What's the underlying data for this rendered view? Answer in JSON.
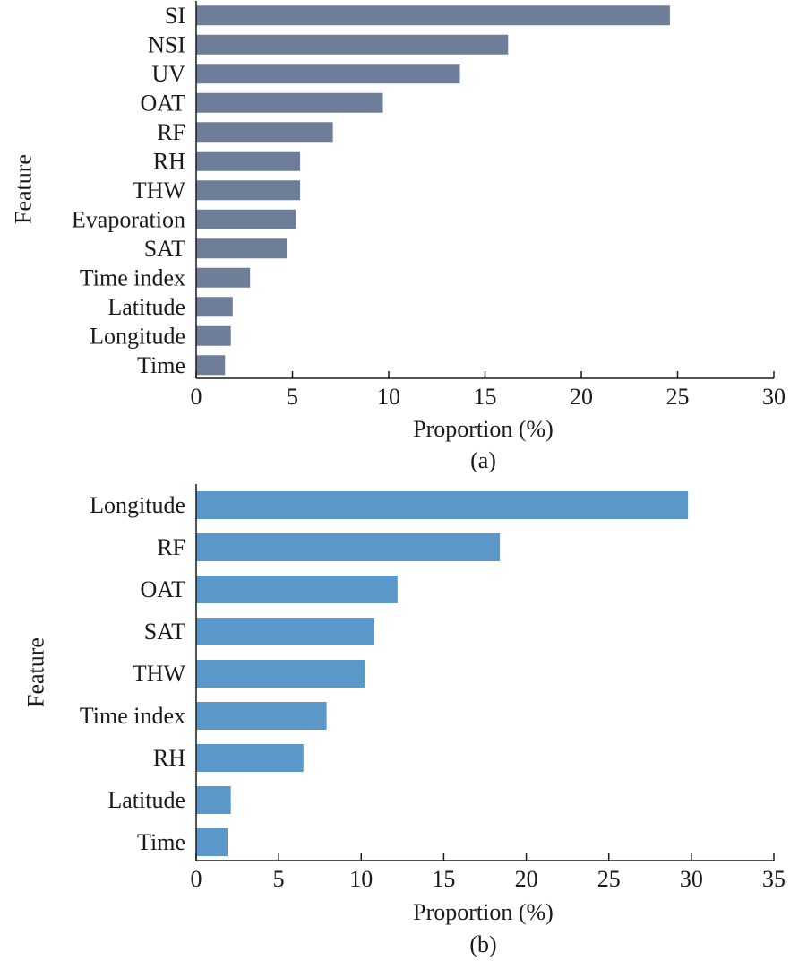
{
  "chart_data": [
    {
      "type": "bar",
      "orientation": "horizontal",
      "panel_label": "(a)",
      "xlabel": "Proportion (%)",
      "ylabel": "Feature",
      "xlim": [
        0,
        30
      ],
      "xticks": [
        0,
        5,
        10,
        15,
        20,
        25,
        30
      ],
      "grid": false,
      "bar_color": "#6f7e98",
      "categories": [
        "SI",
        "NSI",
        "UV",
        "OAT",
        "RF",
        "RH",
        "THW",
        "Evaporation",
        "SAT",
        "Time index",
        "Latitude",
        "Longitude",
        "Time"
      ],
      "values": [
        24.6,
        16.2,
        13.7,
        9.7,
        7.1,
        5.4,
        5.4,
        5.2,
        4.7,
        2.8,
        1.9,
        1.8,
        1.5
      ]
    },
    {
      "type": "bar",
      "orientation": "horizontal",
      "panel_label": "(b)",
      "xlabel": "Proportion (%)",
      "ylabel": "Feature",
      "xlim": [
        0,
        35
      ],
      "xticks": [
        0,
        5,
        10,
        15,
        20,
        25,
        30,
        35
      ],
      "grid": false,
      "bar_color": "#5b97c9",
      "categories": [
        "Longitude",
        "RF",
        "OAT",
        "SAT",
        "THW",
        "Time index",
        "RH",
        "Latitude",
        "Time"
      ],
      "values": [
        29.8,
        18.4,
        12.2,
        10.8,
        10.2,
        7.9,
        6.5,
        2.1,
        1.9
      ]
    }
  ]
}
